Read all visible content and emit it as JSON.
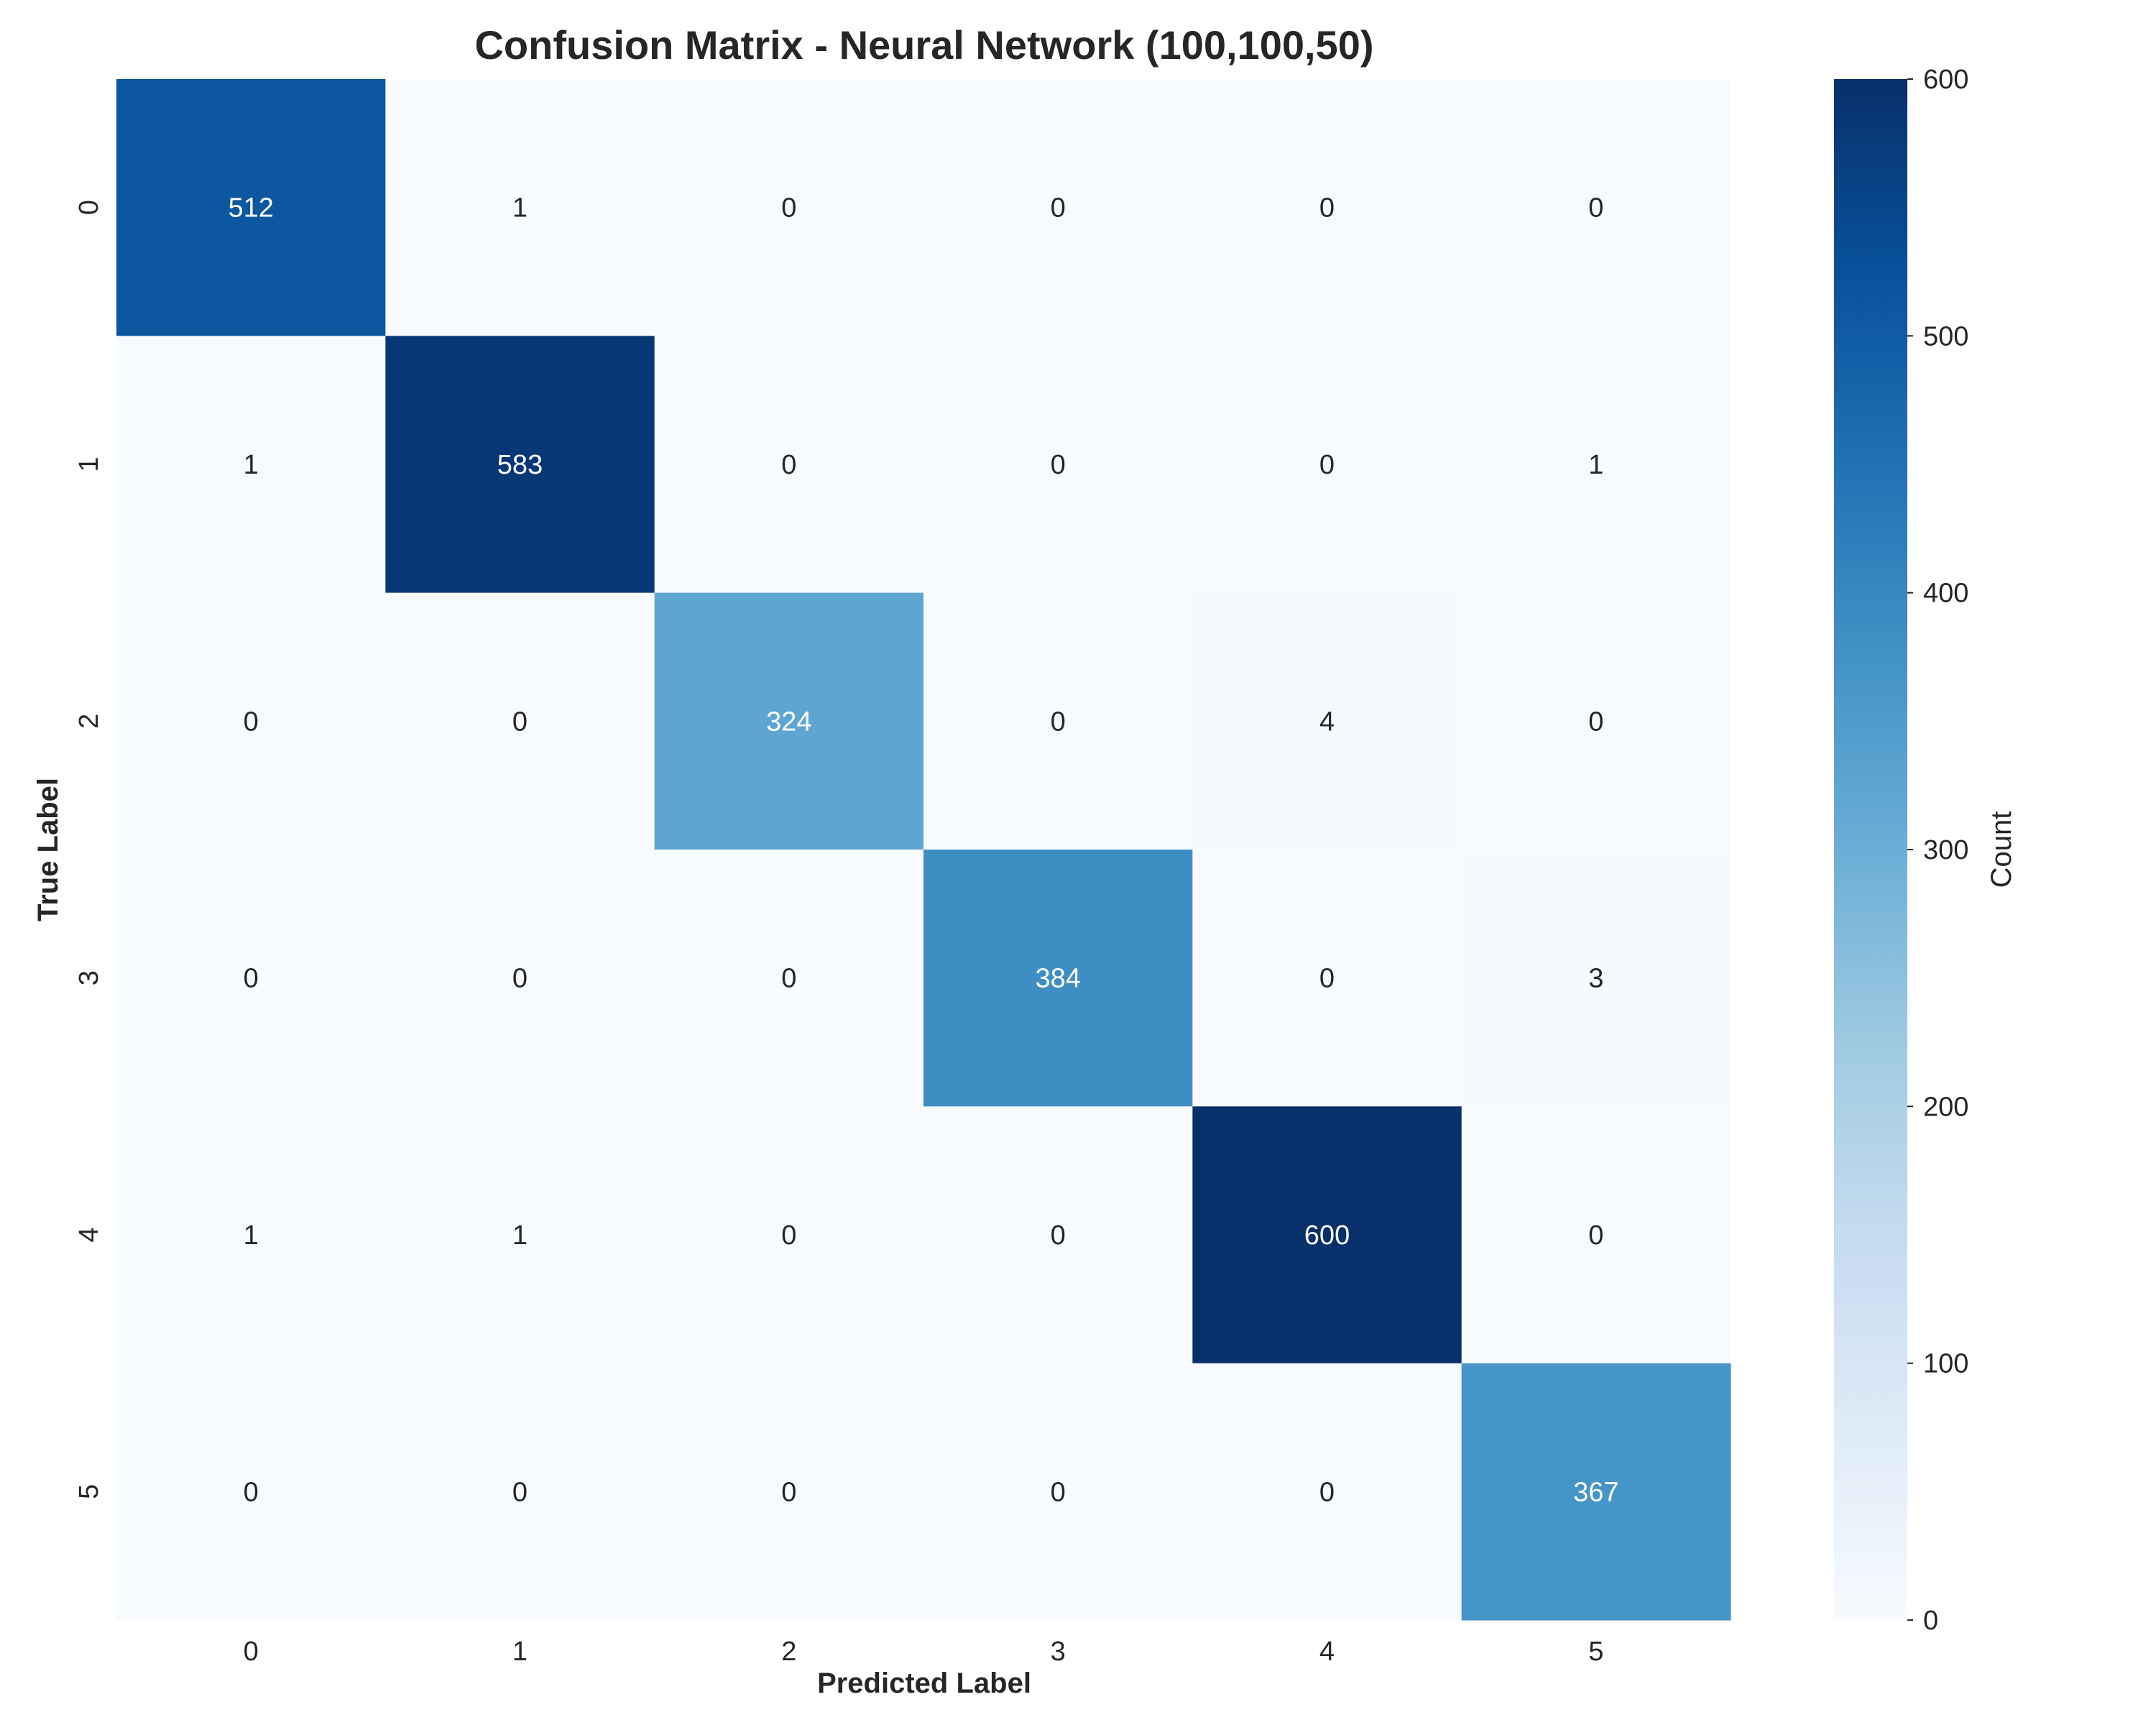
{
  "chart_data": {
    "type": "heatmap",
    "title": "Confusion Matrix - Neural Network (100,100,50)",
    "xlabel": "Predicted Label",
    "ylabel": "True Label",
    "x_categories": [
      "0",
      "1",
      "2",
      "3",
      "4",
      "5"
    ],
    "y_categories": [
      "0",
      "1",
      "2",
      "3",
      "4",
      "5"
    ],
    "matrix": [
      [
        512,
        1,
        0,
        0,
        0,
        0
      ],
      [
        1,
        583,
        0,
        0,
        0,
        1
      ],
      [
        0,
        0,
        324,
        0,
        4,
        0
      ],
      [
        0,
        0,
        0,
        384,
        0,
        3
      ],
      [
        1,
        1,
        0,
        0,
        600,
        0
      ],
      [
        0,
        0,
        0,
        0,
        0,
        367
      ]
    ],
    "colorbar": {
      "label": "Count",
      "range": [
        0,
        600
      ],
      "ticks": [
        "0",
        "100",
        "200",
        "300",
        "400",
        "500",
        "600"
      ],
      "colormap": "Blues"
    },
    "grid": false
  },
  "colors": {
    "cmap_stops": [
      "#f7fbff",
      "#deebf7",
      "#c6dbef",
      "#9ecae1",
      "#6baed6",
      "#4292c6",
      "#2171b5",
      "#08519c",
      "#08306b"
    ],
    "text_dark": "#262626",
    "text_light": "#ffffff"
  }
}
